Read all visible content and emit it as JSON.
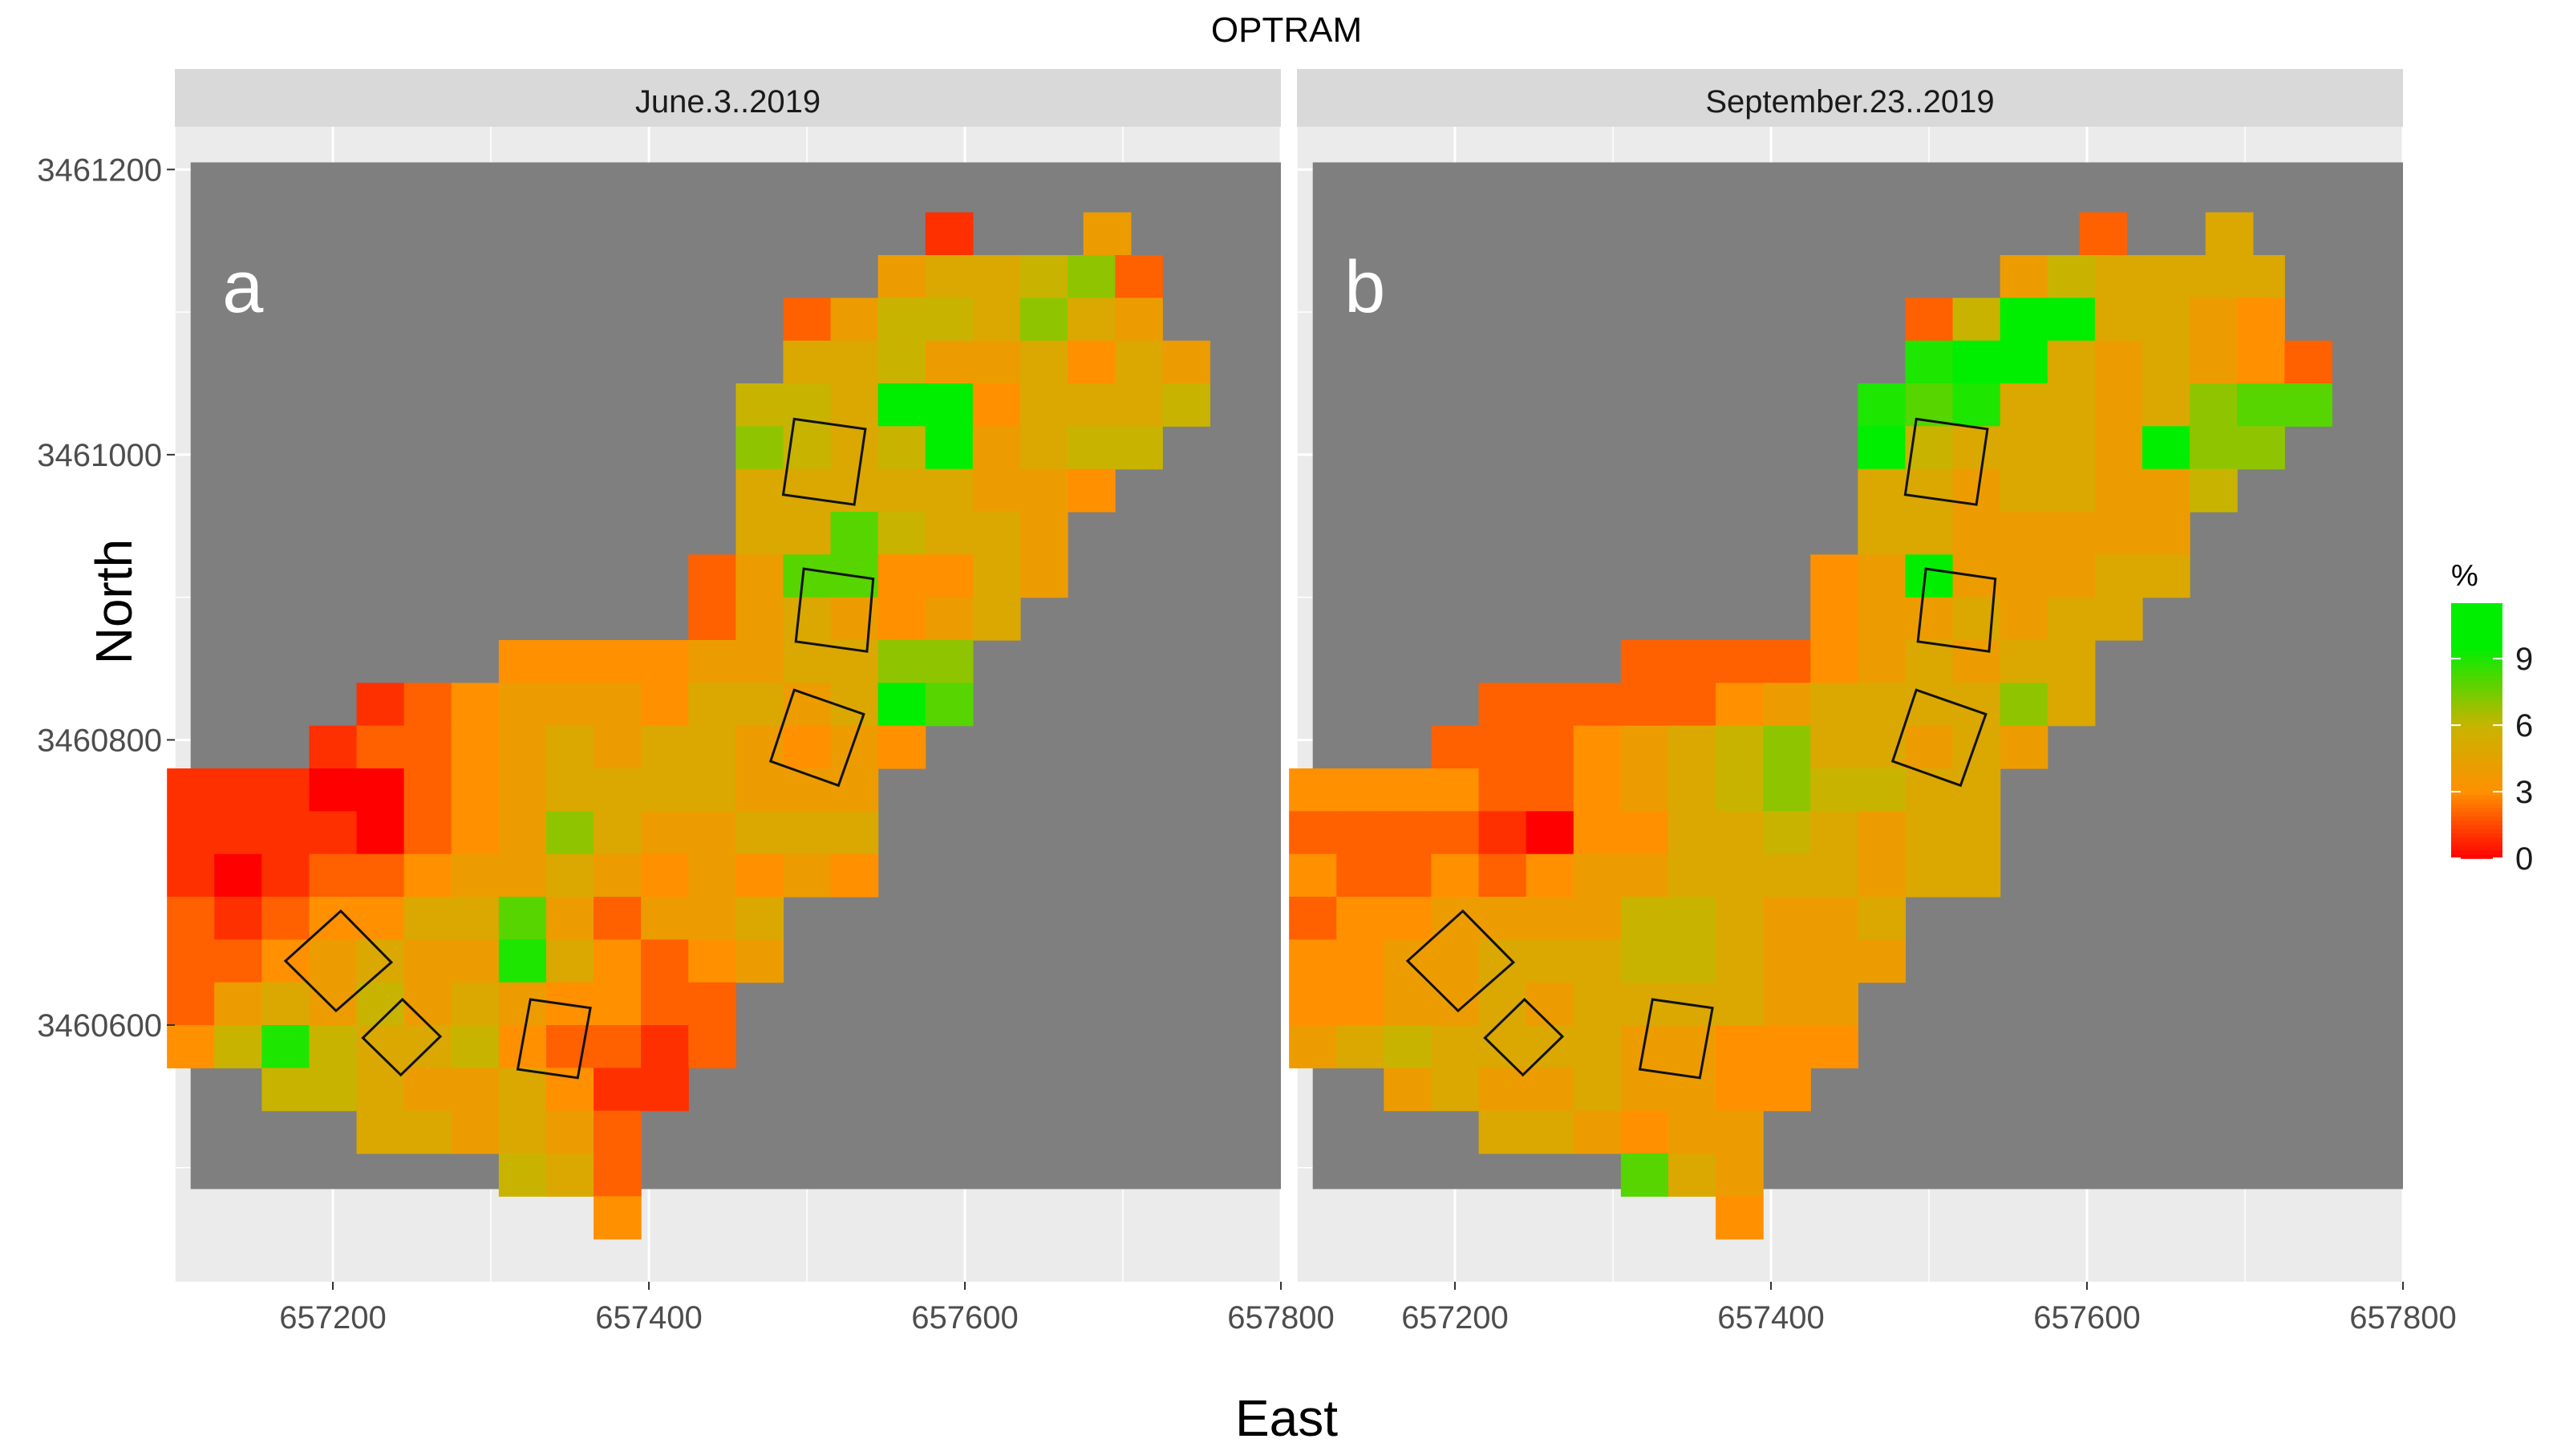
{
  "chart_data": {
    "type": "heatmap",
    "title": "OPTRAM",
    "xlabel": "East",
    "ylabel": "North",
    "x_range": [
      657100,
      657800
    ],
    "y_range": [
      3460420,
      3461230
    ],
    "x_ticks": [
      657200,
      657400,
      657600,
      657800
    ],
    "x_tick_labels": [
      "657200",
      "657400",
      "657600",
      "657800"
    ],
    "y_ticks": [
      3460600,
      3460800,
      3461000,
      3461200
    ],
    "y_tick_labels": [
      "3460600",
      "3460800",
      "3461000",
      "3461200"
    ],
    "legend": {
      "title": "%",
      "placement": "right",
      "range": [
        0,
        11.5
      ],
      "ticks": [
        0,
        3,
        6,
        9
      ],
      "tick_labels": [
        "0",
        "3",
        "6",
        "9"
      ],
      "colors": [
        "#ff0000",
        "#ff9000",
        "#c8b400",
        "#00ee00"
      ]
    },
    "panels": [
      {
        "strip_label": "June.3..2019",
        "letter": "a",
        "rows": [
          {
            "y": 3461140,
            "x0": 657575,
            "v": [
              1
            ]
          },
          {
            "y": 3461140,
            "x0": 657675,
            "v": [
              4
            ]
          },
          {
            "y": 3461110,
            "x0": 657545,
            "v": [
              4,
              5,
              5,
              6,
              7,
              2
            ]
          },
          {
            "y": 3461080,
            "x0": 657485,
            "v": [
              2,
              4,
              6,
              6,
              5,
              7,
              5,
              4
            ]
          },
          {
            "y": 3461050,
            "x0": 657485,
            "v": [
              5,
              5,
              6,
              4,
              4,
              5,
              3,
              5,
              4
            ]
          },
          {
            "y": 3461020,
            "x0": 657455,
            "v": [
              6,
              6,
              5,
              10,
              10,
              3,
              5,
              5,
              5,
              6
            ]
          },
          {
            "y": 3460990,
            "x0": 657455,
            "v": [
              7,
              6,
              5,
              6,
              10,
              4,
              5,
              6,
              6
            ]
          },
          {
            "y": 3460960,
            "x0": 657455,
            "v": [
              5,
              5,
              5,
              5,
              5,
              4,
              4,
              3
            ]
          },
          {
            "y": 3460930,
            "x0": 657455,
            "v": [
              5,
              5,
              8,
              6,
              5,
              5,
              4
            ]
          },
          {
            "y": 3460900,
            "x0": 657425,
            "v": [
              2,
              4,
              8,
              8,
              3,
              3,
              5,
              4
            ]
          },
          {
            "y": 3460870,
            "x0": 657425,
            "v": [
              2,
              4,
              5,
              4,
              3,
              4,
              5
            ]
          },
          {
            "y": 3460840,
            "x0": 657305,
            "v": [
              3,
              3,
              3,
              3,
              4,
              4,
              5,
              5,
              7,
              7
            ]
          },
          {
            "y": 3460810,
            "x0": 657215,
            "v": [
              1,
              2,
              3,
              4,
              4,
              4,
              3,
              5,
              5,
              4,
              5,
              10,
              8
            ]
          },
          {
            "y": 3460780,
            "x0": 657185,
            "v": [
              1,
              2,
              2,
              3,
              4,
              5,
              4,
              5,
              5,
              4,
              3,
              4,
              3
            ]
          },
          {
            "y": 3460750,
            "x0": 657095,
            "v": [
              1,
              1,
              1,
              0,
              0,
              2,
              3,
              4,
              5,
              5,
              5,
              5,
              4,
              4,
              4
            ]
          },
          {
            "y": 3460720,
            "x0": 657095,
            "v": [
              1,
              1,
              1,
              1,
              0,
              2,
              3,
              4,
              7,
              5,
              4,
              4,
              5,
              5,
              5
            ]
          },
          {
            "y": 3460690,
            "x0": 657095,
            "v": [
              1,
              0,
              1,
              2,
              2,
              3,
              4,
              4,
              5,
              4,
              3,
              4,
              3,
              4,
              3
            ]
          },
          {
            "y": 3460660,
            "x0": 657095,
            "v": [
              2,
              1,
              2,
              3,
              3,
              5,
              5,
              8,
              4,
              2,
              4,
              4,
              5
            ]
          },
          {
            "y": 3460630,
            "x0": 657095,
            "v": [
              2,
              2,
              3,
              4,
              5,
              4,
              4,
              9,
              5,
              3,
              2,
              3,
              4
            ]
          },
          {
            "y": 3460600,
            "x0": 657095,
            "v": [
              2,
              4,
              5,
              4,
              6,
              4,
              5,
              4,
              3,
              3,
              2,
              2
            ]
          },
          {
            "y": 3460570,
            "x0": 657095,
            "v": [
              3,
              6,
              9,
              6,
              5,
              5,
              6,
              3,
              2,
              2,
              1,
              2
            ]
          },
          {
            "y": 3460540,
            "x0": 657155,
            "v": [
              6,
              6,
              5,
              4,
              4,
              5,
              3,
              1,
              1
            ]
          },
          {
            "y": 3460510,
            "x0": 657215,
            "v": [
              5,
              5,
              4,
              5,
              4,
              2
            ]
          },
          {
            "y": 3460480,
            "x0": 657305,
            "v": [
              6,
              5,
              2
            ]
          },
          {
            "y": 3460450,
            "x0": 657365,
            "v": [
              3
            ]
          }
        ],
        "boxes": [
          [
            [
              657492,
              3461025
            ],
            [
              657537,
              3461018
            ],
            [
              657530,
              3460965
            ],
            [
              657485,
              3460972
            ]
          ],
          [
            [
              657498,
              3460920
            ],
            [
              657542,
              3460913
            ],
            [
              657538,
              3460862
            ],
            [
              657493,
              3460869
            ]
          ],
          [
            [
              657492,
              3460835
            ],
            [
              657536,
              3460818
            ],
            [
              657520,
              3460768
            ],
            [
              657477,
              3460785
            ]
          ],
          [
            [
              657205,
              3460680
            ],
            [
              657237,
              3460644
            ],
            [
              657202,
              3460610
            ],
            [
              657170,
              3460645
            ]
          ],
          [
            [
              657244,
              3460618
            ],
            [
              657268,
              3460592
            ],
            [
              657243,
              3460565
            ],
            [
              657219,
              3460591
            ]
          ],
          [
            [
              657325,
              3460618
            ],
            [
              657363,
              3460612
            ],
            [
              657355,
              3460563
            ],
            [
              657317,
              3460569
            ]
          ]
        ]
      },
      {
        "strip_label": "September.23..2019",
        "letter": "b",
        "rows": [
          {
            "y": 3461140,
            "x0": 657595,
            "v": [
              2
            ]
          },
          {
            "y": 3461140,
            "x0": 657675,
            "v": [
              5
            ]
          },
          {
            "y": 3461110,
            "x0": 657545,
            "v": [
              4,
              6,
              5,
              5,
              5,
              5
            ]
          },
          {
            "y": 3461080,
            "x0": 657485,
            "v": [
              2,
              6,
              10,
              10,
              5,
              5,
              4,
              3
            ]
          },
          {
            "y": 3461050,
            "x0": 657485,
            "v": [
              9,
              10,
              10,
              5,
              4,
              5,
              4,
              3,
              2
            ]
          },
          {
            "y": 3461020,
            "x0": 657455,
            "v": [
              9,
              8,
              9,
              5,
              5,
              4,
              5,
              7,
              8,
              8
            ]
          },
          {
            "y": 3460990,
            "x0": 657455,
            "v": [
              10,
              6,
              5,
              5,
              5,
              4,
              10,
              7,
              7
            ]
          },
          {
            "y": 3460960,
            "x0": 657455,
            "v": [
              5,
              5,
              4,
              5,
              5,
              4,
              4,
              6
            ]
          },
          {
            "y": 3460930,
            "x0": 657455,
            "v": [
              5,
              5,
              4,
              4,
              4,
              4,
              4
            ]
          },
          {
            "y": 3460900,
            "x0": 657425,
            "v": [
              3,
              4,
              10,
              4,
              4,
              4,
              5,
              5
            ]
          },
          {
            "y": 3460870,
            "x0": 657425,
            "v": [
              3,
              4,
              4,
              5,
              4,
              5,
              5
            ]
          },
          {
            "y": 3460840,
            "x0": 657305,
            "v": [
              2,
              2,
              2,
              2,
              3,
              4,
              5,
              4,
              5,
              5
            ]
          },
          {
            "y": 3460810,
            "x0": 657215,
            "v": [
              2,
              2,
              2,
              2,
              2,
              3,
              4,
              5,
              5,
              5,
              5,
              7,
              5
            ]
          },
          {
            "y": 3460780,
            "x0": 657185,
            "v": [
              2,
              2,
              2,
              3,
              4,
              5,
              6,
              7,
              5,
              5,
              4,
              5,
              4
            ]
          },
          {
            "y": 3460750,
            "x0": 657095,
            "v": [
              3,
              3,
              3,
              3,
              2,
              2,
              3,
              4,
              5,
              6,
              7,
              6,
              6,
              5,
              5
            ]
          },
          {
            "y": 3460720,
            "x0": 657095,
            "v": [
              2,
              2,
              2,
              2,
              1,
              0,
              3,
              3,
              5,
              5,
              6,
              5,
              4,
              5,
              5
            ]
          },
          {
            "y": 3460690,
            "x0": 657095,
            "v": [
              3,
              2,
              2,
              3,
              2,
              3,
              4,
              4,
              5,
              5,
              5,
              5,
              4,
              5,
              5
            ]
          },
          {
            "y": 3460660,
            "x0": 657095,
            "v": [
              2,
              3,
              3,
              4,
              4,
              4,
              4,
              6,
              6,
              5,
              4,
              4,
              5
            ]
          },
          {
            "y": 3460630,
            "x0": 657095,
            "v": [
              3,
              3,
              4,
              4,
              5,
              5,
              5,
              6,
              6,
              5,
              4,
              4,
              4
            ]
          },
          {
            "y": 3460600,
            "x0": 657095,
            "v": [
              3,
              3,
              4,
              4,
              5,
              4,
              5,
              5,
              5,
              5,
              4,
              4
            ]
          },
          {
            "y": 3460570,
            "x0": 657095,
            "v": [
              4,
              5,
              6,
              5,
              5,
              5,
              5,
              4,
              4,
              3,
              3,
              3
            ]
          },
          {
            "y": 3460540,
            "x0": 657155,
            "v": [
              4,
              5,
              4,
              4,
              5,
              4,
              4,
              3,
              3
            ]
          },
          {
            "y": 3460510,
            "x0": 657215,
            "v": [
              5,
              5,
              4,
              3,
              4,
              4
            ]
          },
          {
            "y": 3460480,
            "x0": 657305,
            "v": [
              8,
              5,
              4
            ]
          },
          {
            "y": 3460450,
            "x0": 657365,
            "v": [
              3
            ]
          }
        ],
        "boxes": [
          [
            [
              657492,
              3461025
            ],
            [
              657537,
              3461018
            ],
            [
              657530,
              3460965
            ],
            [
              657485,
              3460972
            ]
          ],
          [
            [
              657498,
              3460920
            ],
            [
              657542,
              3460913
            ],
            [
              657538,
              3460862
            ],
            [
              657493,
              3460869
            ]
          ],
          [
            [
              657492,
              3460835
            ],
            [
              657536,
              3460818
            ],
            [
              657520,
              3460768
            ],
            [
              657477,
              3460785
            ]
          ],
          [
            [
              657205,
              3460680
            ],
            [
              657237,
              3460644
            ],
            [
              657202,
              3460610
            ],
            [
              657170,
              3460645
            ]
          ],
          [
            [
              657244,
              3460618
            ],
            [
              657268,
              3460592
            ],
            [
              657243,
              3460565
            ],
            [
              657219,
              3460591
            ]
          ],
          [
            [
              657325,
              3460618
            ],
            [
              657363,
              3460612
            ],
            [
              657355,
              3460563
            ],
            [
              657317,
              3460569
            ]
          ]
        ]
      }
    ]
  }
}
